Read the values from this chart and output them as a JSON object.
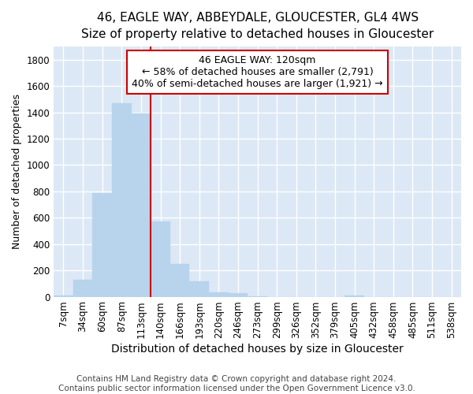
{
  "title": "46, EAGLE WAY, ABBEYDALE, GLOUCESTER, GL4 4WS",
  "subtitle": "Size of property relative to detached houses in Gloucester",
  "xlabel": "Distribution of detached houses by size in Gloucester",
  "ylabel": "Number of detached properties",
  "bar_color": "#b8d4ec",
  "bar_edge_color": "#b8d4ec",
  "figure_bg": "#ffffff",
  "axes_bg": "#dce8f5",
  "grid_color": "#ffffff",
  "categories": [
    "7sqm",
    "34sqm",
    "60sqm",
    "87sqm",
    "113sqm",
    "140sqm",
    "166sqm",
    "193sqm",
    "220sqm",
    "246sqm",
    "273sqm",
    "299sqm",
    "326sqm",
    "352sqm",
    "379sqm",
    "405sqm",
    "432sqm",
    "458sqm",
    "485sqm",
    "511sqm",
    "538sqm"
  ],
  "values": [
    10,
    130,
    790,
    1470,
    1390,
    570,
    250,
    120,
    35,
    30,
    5,
    0,
    0,
    0,
    0,
    10,
    0,
    0,
    0,
    0,
    0
  ],
  "ylim": [
    0,
    1900
  ],
  "yticks": [
    0,
    200,
    400,
    600,
    800,
    1000,
    1200,
    1400,
    1600,
    1800
  ],
  "vline_x": 4.5,
  "vline_color": "#cc0000",
  "annotation_line1": "46 EAGLE WAY: 120sqm",
  "annotation_line2": "← 58% of detached houses are smaller (2,791)",
  "annotation_line3": "40% of semi-detached houses are larger (1,921) →",
  "annotation_box_color": "#cc0000",
  "annotation_fontsize": 9,
  "footer_text": "Contains HM Land Registry data © Crown copyright and database right 2024.\nContains public sector information licensed under the Open Government Licence v3.0.",
  "title_fontsize": 11,
  "subtitle_fontsize": 10,
  "xlabel_fontsize": 10,
  "ylabel_fontsize": 9,
  "tick_fontsize": 8.5
}
